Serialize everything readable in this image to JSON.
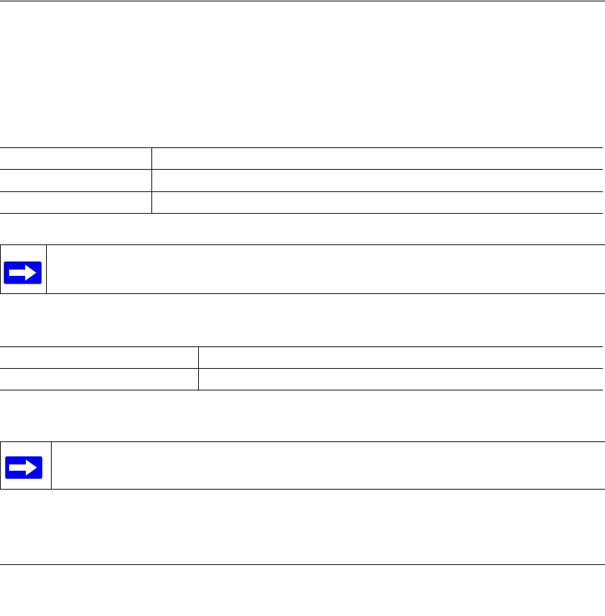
{
  "header": {
    "text": ""
  },
  "table1": {
    "rows": [
      [
        "",
        ""
      ],
      [
        "",
        ""
      ],
      [
        "",
        ""
      ]
    ]
  },
  "note1": {
    "icon": "arrow-right-icon",
    "text": ""
  },
  "table2": {
    "rows": [
      [
        "",
        ""
      ],
      [
        "",
        ""
      ]
    ]
  },
  "note2": {
    "icon": "arrow-right-icon",
    "text": ""
  },
  "footer": {
    "text": ""
  },
  "colors": {
    "note_icon": "#0000f0",
    "rule": "#000000"
  }
}
